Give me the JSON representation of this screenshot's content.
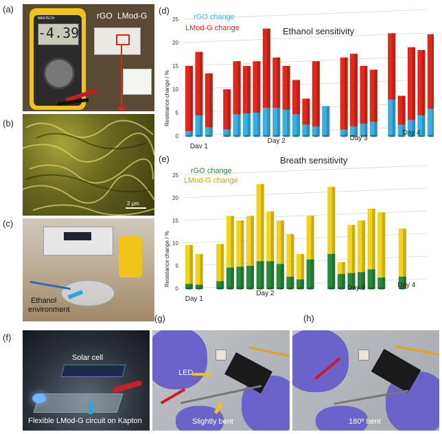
{
  "panels": {
    "a": "(a)",
    "b": "(b)",
    "c": "(c)",
    "d": "(d)",
    "e": "(e)",
    "f": "(f)",
    "g": "(g)",
    "h": "(h)"
  },
  "photo_a": {
    "display": "-4.39",
    "label_rgo": "rGO",
    "label_lmod": "LMod-G",
    "meter_brand": "MASTECH"
  },
  "photo_b": {
    "scale_bar": "2 μm"
  },
  "photo_c": {
    "annotation_line1": "Ethanol",
    "annotation_line2": "environment"
  },
  "photo_f": {
    "solar_cell": "Solar cell",
    "caption": "Flexible LMod-G circuit on Kapton"
  },
  "photo_g": {
    "led": "LED",
    "caption": "Slightly bent"
  },
  "photo_h": {
    "caption": "180º bent"
  },
  "colors": {
    "rgo_d": "#3ab0e2",
    "lmod_d": "#e0281c",
    "rgo_e": "#2a8a3c",
    "lmod_e": "#f2d21a"
  },
  "chart_data": [
    {
      "type": "bar",
      "title": "Ethanol sensitivity",
      "ylabel": "Resistance change / %",
      "ylim": [
        0,
        25
      ],
      "yticks": [
        "0",
        "5",
        "10",
        "15",
        "20",
        "25"
      ],
      "legend": [
        "rGO change",
        "LMod-G change"
      ],
      "day_labels": [
        "Day 1",
        "Day 2",
        "Day 3",
        "Day 4"
      ],
      "series": [
        {
          "name": "rGO change",
          "values": [
            1,
            4.4,
            1.8,
            1.4,
            4.6,
            4.8,
            5,
            6,
            6,
            5.6,
            4.6,
            2.4,
            2,
            6.4,
            1.4,
            2,
            2.6,
            3,
            7.8,
            2.4,
            3.4,
            4.4,
            5.8
          ]
        },
        {
          "name": "LMod-G change",
          "values": [
            15,
            18,
            13.4,
            10,
            16,
            15,
            16,
            23,
            16.8,
            15,
            12,
            8,
            16,
            6.4,
            16.8,
            17.6,
            15,
            14.2,
            22,
            8.6,
            19,
            18.4,
            21.8
          ]
        }
      ],
      "groups": [
        3,
        11,
        4,
        5
      ]
    },
    {
      "type": "bar",
      "title": "Breath sensitivity",
      "ylabel": "Resistance change / %",
      "ylim": [
        0,
        25
      ],
      "yticks": [
        "0",
        "5",
        "10",
        "15",
        "20",
        "25"
      ],
      "legend": [
        "rGO change",
        "LMod-G change"
      ],
      "day_labels": [
        "Day 1",
        "Day 2",
        "Day 3",
        "Day 4"
      ],
      "series": [
        {
          "name": "rGO change",
          "values": [
            1,
            0.8,
            1.6,
            4.6,
            4.8,
            5,
            6,
            6,
            5.4,
            2.6,
            2,
            6.4,
            7.6,
            3.2,
            3.4,
            3.6,
            4.2,
            2.4,
            2.6
          ]
        },
        {
          "name": "LMod-G change",
          "values": [
            9.6,
            7.6,
            9.8,
            16,
            15,
            16,
            23,
            17,
            15,
            12,
            7.6,
            16,
            22.4,
            5.8,
            14,
            15,
            17.6,
            16.8,
            13.2
          ]
        }
      ],
      "groups": [
        2,
        10,
        6,
        1
      ]
    }
  ]
}
